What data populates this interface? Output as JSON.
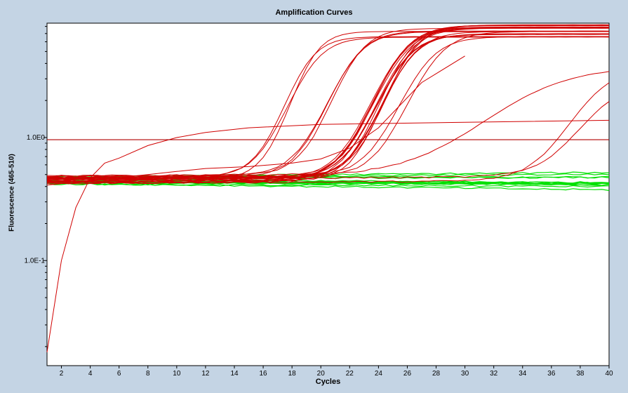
{
  "chart_data": {
    "type": "line",
    "title": "Amplification Curves",
    "xlabel": "Cycles",
    "ylabel": "Fluorescence (465-510)",
    "xlim": [
      1,
      40
    ],
    "x_ticks": [
      2,
      4,
      6,
      8,
      10,
      12,
      14,
      16,
      18,
      20,
      22,
      24,
      26,
      28,
      30,
      32,
      34,
      36,
      38,
      40
    ],
    "y_scale": "log",
    "ylim": [
      0.014,
      8.5
    ],
    "y_tick_labels": [
      {
        "value": 1.0,
        "label": "1.0E0"
      },
      {
        "value": 0.1,
        "label": "1.0E-1"
      }
    ],
    "threshold": 0.96,
    "colors": {
      "positive": "#d00000",
      "negative": "#00e000",
      "background": "#c4d4e4",
      "plot": "#ffffff"
    },
    "groups": [
      {
        "color": "positive",
        "count": 3,
        "base": 0.46,
        "plateau": 6.3,
        "midpoint": 19.0,
        "slope": 1.0
      },
      {
        "color": "positive",
        "count": 3,
        "base": 0.46,
        "plateau": 6.8,
        "midpoint": 22.4,
        "slope": 1.1
      },
      {
        "color": "positive",
        "count": 14,
        "base": 0.45,
        "plateau": 7.1,
        "midpoint": 25.6,
        "slope": 1.15
      },
      {
        "color": "positive",
        "count": 2,
        "base": 0.46,
        "plateau": 6.3,
        "midpoint": 27.3,
        "slope": 1.3
      },
      {
        "color": "positive",
        "count": 1,
        "base": 0.45,
        "plateau": 3.6,
        "midpoint": 34.5,
        "slope": 2.6
      },
      {
        "color": "positive",
        "count": 1,
        "base": 0.44,
        "plateau": 3.2,
        "midpoint": 39.0,
        "slope": 1.4
      },
      {
        "color": "positive",
        "count": 1,
        "base": 0.44,
        "plateau": 2.4,
        "midpoint": 39.0,
        "slope": 1.5
      },
      {
        "color": "negative",
        "count": 14,
        "base": 0.45,
        "plateau": 0,
        "midpoint": 0,
        "slope": 1
      }
    ],
    "series": [
      {
        "color": "positive",
        "x": [
          1,
          2,
          3,
          4,
          5,
          6,
          8,
          10,
          12,
          15,
          20,
          30,
          40
        ],
        "y": [
          0.018,
          0.1,
          0.27,
          0.47,
          0.62,
          0.68,
          0.86,
          1.0,
          1.1,
          1.2,
          1.28,
          1.33,
          1.38
        ]
      },
      {
        "color": "positive",
        "x": [
          1,
          5,
          8,
          10,
          12,
          15,
          18,
          20,
          22,
          24,
          27,
          30
        ],
        "y": [
          0.41,
          0.46,
          0.5,
          0.53,
          0.56,
          0.58,
          0.62,
          0.67,
          0.82,
          1.2,
          2.8,
          4.6
        ]
      }
    ]
  }
}
